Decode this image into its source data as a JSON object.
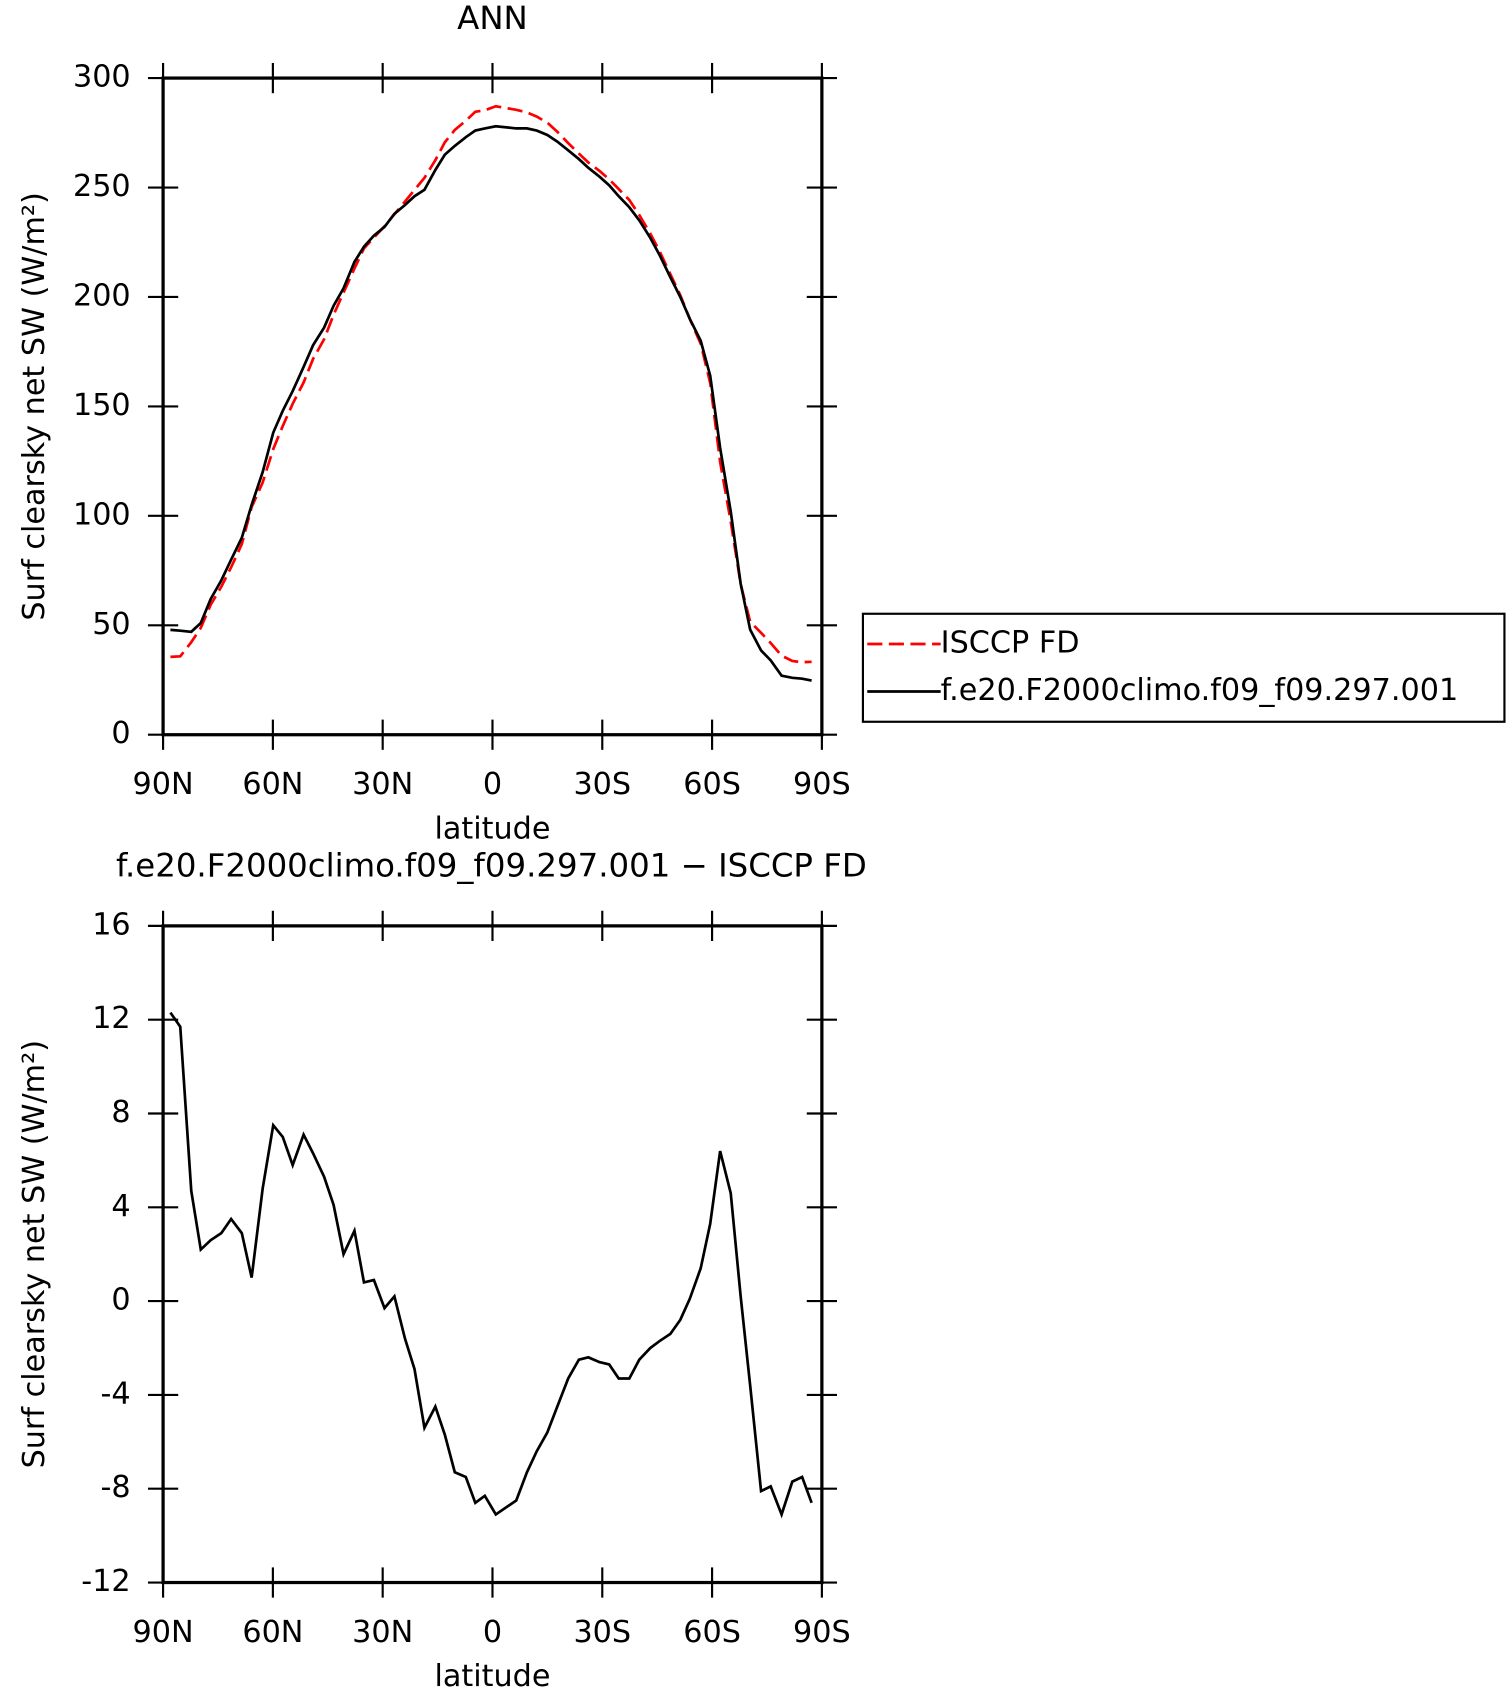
{
  "chart_data": [
    {
      "type": "line",
      "title": "ANN",
      "xlabel": "latitude",
      "ylabel": "Surf clearsky net SW (W/m²)",
      "x": [
        88,
        85.3,
        82.3,
        79.7,
        77,
        74.1,
        71.4,
        68.5,
        65.8,
        62.8,
        59.9,
        57.3,
        54.6,
        51.6,
        49,
        46,
        43.4,
        40.7,
        37.7,
        35.1,
        32.4,
        29.5,
        26.8,
        23.9,
        21.3,
        18.6,
        15.6,
        13,
        10.3,
        7.3,
        4.7,
        2.1,
        -0.9,
        -6.5,
        -9.4,
        -12.1,
        -15,
        -17.7,
        -20.7,
        -23.6,
        -26.2,
        -29.2,
        -31.9,
        -34.5,
        -37.4,
        -40.1,
        -43.1,
        -45.7,
        -48.6,
        -51.3,
        -53.9,
        -56.9,
        -59.5,
        -62.2,
        -65.1,
        -67.8,
        -70.4,
        -73.4,
        -76,
        -79,
        -81.9,
        -84.6,
        -87.2
      ],
      "series": [
        {
          "name": "ISCCP FD",
          "color": "#ff0000",
          "linestyle": "dashed",
          "values": [
            35.6,
            35.8,
            42.3,
            48.8,
            59.4,
            67.6,
            76.5,
            87.1,
            104,
            115.2,
            130.5,
            141,
            151.2,
            160.9,
            171.7,
            180.7,
            191.9,
            202,
            213,
            222.2,
            227.1,
            232.3,
            237.8,
            243.6,
            248.9,
            254.4,
            262.5,
            270.7,
            276.3,
            280.5,
            284.6,
            285.3,
            287.1,
            285.5,
            284.3,
            282.4,
            279.6,
            275.5,
            270.3,
            265.5,
            261.4,
            257.6,
            253.7,
            249.3,
            244.3,
            237.5,
            229,
            220.7,
            210.4,
            200.8,
            189.9,
            178.6,
            160.7,
            124.6,
            97.4,
            68.8,
            51.6,
            46.6,
            41.9,
            36.1,
            33.7,
            33.1,
            33.3
          ]
        },
        {
          "name": "f.e20.F2000climo.f09_f09.297.001",
          "color": "#000000",
          "linestyle": "solid",
          "values": [
            47.9,
            47.5,
            47,
            51,
            62,
            70.5,
            80,
            90,
            105,
            120,
            138,
            148,
            157,
            168,
            178,
            186,
            196,
            204,
            216,
            223,
            228,
            232,
            238,
            242,
            246,
            249,
            258,
            265,
            269,
            273,
            276,
            277,
            278,
            277,
            277,
            276,
            274,
            271,
            267,
            263,
            259,
            255,
            251,
            246,
            241,
            235,
            227,
            219,
            209,
            200,
            190,
            180,
            164,
            131,
            102,
            69,
            48,
            38.5,
            34,
            27,
            26,
            25.6,
            24.7
          ]
        }
      ],
      "xlim": [
        90,
        -90
      ],
      "xticks": [
        {
          "value": 90,
          "label": "90N"
        },
        {
          "value": 60,
          "label": "60N"
        },
        {
          "value": 30,
          "label": "30N"
        },
        0,
        {
          "value": -30,
          "label": "30S"
        },
        {
          "value": -60,
          "label": "60S"
        },
        {
          "value": -90,
          "label": "90S"
        }
      ],
      "ylim": [
        0,
        300
      ],
      "yticks": [
        0,
        50,
        100,
        150,
        200,
        250,
        300
      ],
      "legend": "right"
    },
    {
      "type": "line",
      "title": "f.e20.F2000climo.f09_f09.297.001 − ISCCP FD",
      "xlabel": "latitude",
      "ylabel": "Surf clearsky net SW (W/m²)",
      "x": [
        88,
        85.3,
        82.3,
        79.7,
        77,
        74.1,
        71.4,
        68.5,
        65.8,
        62.8,
        59.9,
        57.3,
        54.6,
        51.6,
        49,
        46,
        43.4,
        40.7,
        37.7,
        35.1,
        32.4,
        29.5,
        26.8,
        23.9,
        21.3,
        18.6,
        15.6,
        13,
        10.3,
        7.3,
        4.7,
        2.1,
        -0.9,
        -6.5,
        -9.4,
        -12.1,
        -15,
        -17.7,
        -20.7,
        -23.6,
        -26.2,
        -29.2,
        -31.9,
        -34.5,
        -37.4,
        -40.1,
        -43.1,
        -45.7,
        -48.6,
        -51.3,
        -53.9,
        -56.9,
        -59.5,
        -62.2,
        -65.1,
        -67.8,
        -70.4,
        -73.4,
        -76,
        -79,
        -81.9,
        -84.6,
        -87.2
      ],
      "color": "#000000",
      "values": [
        12.3,
        11.7,
        4.7,
        2.2,
        2.6,
        2.9,
        3.5,
        2.9,
        1.0,
        4.8,
        7.5,
        7.0,
        5.8,
        7.1,
        6.3,
        5.3,
        4.1,
        2.0,
        3.0,
        0.8,
        0.9,
        -0.3,
        0.2,
        -1.6,
        -2.9,
        -5.4,
        -4.5,
        -5.7,
        -7.3,
        -7.5,
        -8.6,
        -8.3,
        -9.1,
        -8.5,
        -7.3,
        -6.4,
        -5.6,
        -4.5,
        -3.3,
        -2.5,
        -2.4,
        -2.6,
        -2.7,
        -3.3,
        -3.3,
        -2.5,
        -2.0,
        -1.7,
        -1.4,
        -0.8,
        0.1,
        1.4,
        3.3,
        6.4,
        4.6,
        0.2,
        -3.6,
        -8.1,
        -7.9,
        -9.1,
        -7.7,
        -7.5,
        -8.6
      ],
      "xlim": [
        90,
        -90
      ],
      "xticks": [
        {
          "value": 90,
          "label": "90N"
        },
        {
          "value": 60,
          "label": "60N"
        },
        {
          "value": 30,
          "label": "30N"
        },
        0,
        {
          "value": -30,
          "label": "30S"
        },
        {
          "value": -60,
          "label": "60S"
        },
        {
          "value": -90,
          "label": "90S"
        }
      ],
      "ylim": [
        -12,
        16
      ],
      "yticks": [
        -12,
        -8,
        -4,
        0,
        4,
        8,
        12,
        16
      ]
    }
  ]
}
